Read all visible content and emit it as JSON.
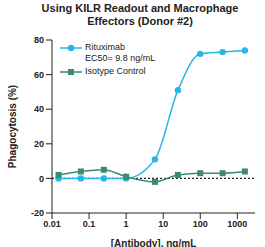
{
  "chart_data": {
    "type": "line",
    "title": "Using KILR Readout and Macrophage Effectors (Donor #2)",
    "x_label": "[Antibody], ng/mL",
    "y_label": "Phagocytosis (%)",
    "log": "x",
    "xlim": [
      0.01,
      3000
    ],
    "xticks": [
      0.01,
      0.1,
      1,
      10,
      100,
      1000
    ],
    "ylim": [
      -20,
      80
    ],
    "yticks": [
      -20,
      0,
      20,
      40,
      60,
      80
    ],
    "baseline": 0,
    "legend": "upper left",
    "annotations": [
      "EC50= 9.8 ng/mL"
    ],
    "series": [
      {
        "name": "Rituximab",
        "color": "#29b5e8",
        "marker": "circle",
        "line_style": "solid",
        "x": [
          0.015,
          0.06,
          0.25,
          1,
          6,
          25,
          100,
          400,
          1600
        ],
        "values": [
          0,
          0,
          0,
          0,
          11,
          51,
          72,
          73,
          74
        ]
      },
      {
        "name": "Isotype Control",
        "color": "#3d8a70",
        "marker": "square",
        "line_style": "solid",
        "x": [
          0.015,
          0.06,
          0.25,
          1,
          6,
          25,
          100,
          400,
          1600
        ],
        "values": [
          2,
          4,
          5,
          1,
          -2,
          2,
          3,
          3,
          4
        ]
      }
    ]
  }
}
